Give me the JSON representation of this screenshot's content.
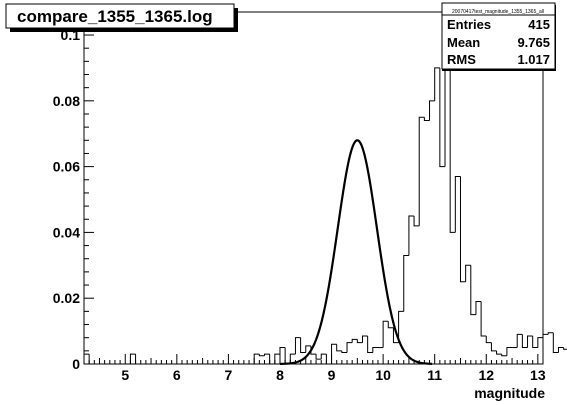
{
  "window": {
    "title": "compare_1355_1365.log"
  },
  "chart_data": {
    "type": "bar",
    "style": "step-histogram",
    "title": "compare_1355_1365.log",
    "xlabel": "magnitude",
    "ylabel": "",
    "xlim": [
      4.2,
      13.1
    ],
    "ylim": [
      0,
      0.107
    ],
    "x_ticks": [
      "5",
      "6",
      "7",
      "8",
      "9",
      "10",
      "11",
      "12",
      "13"
    ],
    "y_ticks": [
      "0",
      "0.02",
      "0.04",
      "0.06",
      "0.08",
      "0.1"
    ],
    "bin_width": 0.1,
    "bins_start": 4.2,
    "values": [
      0.003,
      0,
      0,
      0,
      0,
      0,
      0,
      0,
      0,
      0.003,
      0,
      0,
      0,
      0,
      0,
      0,
      0,
      0,
      0,
      0,
      0,
      0,
      0,
      0,
      0,
      0,
      0,
      0,
      0,
      0,
      0,
      0,
      0,
      0.003,
      0.0025,
      0.003,
      0,
      0.003,
      0.005,
      0,
      0.003,
      0.008,
      0.0035,
      0.0055,
      0.003,
      0.0015,
      0.003,
      0,
      0.006,
      0.004,
      0.0035,
      0.0065,
      0.0075,
      0.0065,
      0.0085,
      0.0035,
      0.005,
      0.005,
      0.013,
      0.011,
      0.0065,
      0.016,
      0.033,
      0.045,
      0.042,
      0.075,
      0.074,
      0.08,
      0.09,
      0.06,
      0.106,
      0.04,
      0.057,
      0.025,
      0.03,
      0.015,
      0.019,
      0.0085,
      0.0065,
      0.004,
      0.003,
      0.0025,
      0.005,
      0.005,
      0.009,
      0.005,
      0.0085,
      0.005,
      0.008,
      0.009,
      0.0095,
      0.0035,
      0.005,
      0.0045,
      0.0045,
      0.013,
      0.009,
      0.0085,
      0.0115,
      0.0085,
      0.005,
      0.0035,
      0.0035,
      0.003,
      0.007,
      0.003,
      0.0045,
      0.0055,
      0,
      0.0025,
      0.0055,
      0,
      0.0025,
      0,
      0,
      0
    ],
    "fit": {
      "type": "gaussian",
      "constant": 0.068,
      "mean": 9.5,
      "sigma": 0.38
    },
    "grid": false,
    "legend_position": "top-right",
    "stats": {
      "name": "20070417test_magnitude_1355_1365_all",
      "rows": [
        {
          "label": "Entries",
          "value": "415"
        },
        {
          "label": "Mean",
          "value": "9.765"
        },
        {
          "label": "RMS",
          "value": "1.017"
        }
      ]
    },
    "colors": {
      "histogram": "#000000",
      "fit": "#000000",
      "background": "#ffffff"
    }
  }
}
